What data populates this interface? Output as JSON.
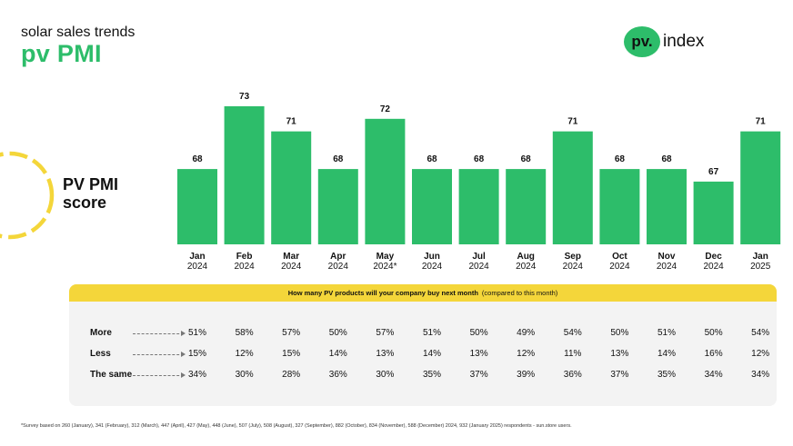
{
  "header": {
    "eyebrow": "solar sales trends",
    "title": "pv PMI"
  },
  "logo": {
    "badge": "pv.",
    "text": "index"
  },
  "score_label": {
    "line1": "PV PMI",
    "line2": "score"
  },
  "colors": {
    "accent": "#2dbd6a",
    "highlight": "#f4d63a",
    "panel": "#f3f3f3"
  },
  "chart_data": {
    "type": "bar",
    "title": "PV PMI score",
    "categories": [
      "Jan 2024",
      "Feb 2024",
      "Mar 2024",
      "Apr 2024",
      "May 2024*",
      "Jun 2024",
      "Jul 2024",
      "Aug 2024",
      "Sep 2024",
      "Oct 2024",
      "Nov 2024",
      "Dec 2024",
      "Jan 2025"
    ],
    "months": [
      "Jan",
      "Feb",
      "Mar",
      "Apr",
      "May",
      "Jun",
      "Jul",
      "Aug",
      "Sep",
      "Oct",
      "Nov",
      "Dec",
      "Jan"
    ],
    "years": [
      "2024",
      "2024",
      "2024",
      "2024",
      "2024*",
      "2024",
      "2024",
      "2024",
      "2024",
      "2024",
      "2024",
      "2024",
      "2025"
    ],
    "values": [
      68,
      73,
      71,
      68,
      72,
      68,
      68,
      68,
      71,
      68,
      68,
      67,
      71
    ],
    "data_labels": [
      "68",
      "73",
      "71",
      "68",
      "72",
      "68",
      "68",
      "68",
      "71",
      "68",
      "68",
      "67",
      "71"
    ],
    "xlabel": "",
    "ylabel": "",
    "ylim": [
      62,
      73
    ],
    "grid": false,
    "legend": "none"
  },
  "survey": {
    "question": "How many PV products will your company buy next month",
    "qualifier": "(compared to this month)",
    "rows": [
      {
        "label": "More",
        "values": [
          "51%",
          "58%",
          "57%",
          "50%",
          "57%",
          "51%",
          "50%",
          "49%",
          "54%",
          "50%",
          "51%",
          "50%",
          "54%"
        ]
      },
      {
        "label": "Less",
        "values": [
          "15%",
          "12%",
          "15%",
          "14%",
          "13%",
          "14%",
          "13%",
          "12%",
          "11%",
          "13%",
          "14%",
          "16%",
          "12%"
        ]
      },
      {
        "label": "The same",
        "values": [
          "34%",
          "30%",
          "28%",
          "36%",
          "30%",
          "35%",
          "37%",
          "39%",
          "36%",
          "37%",
          "35%",
          "34%",
          "34%"
        ]
      }
    ]
  },
  "footnote": "*Survey based on 260 (January), 341 (February), 312 (March), 447 (April), 427 (May), 448 (June), 507 (July), 508 (August), 327 (September), 882 (October), 834 (November), 588 (December) 2024, 932 (January 2025) respondents - sun.store users."
}
